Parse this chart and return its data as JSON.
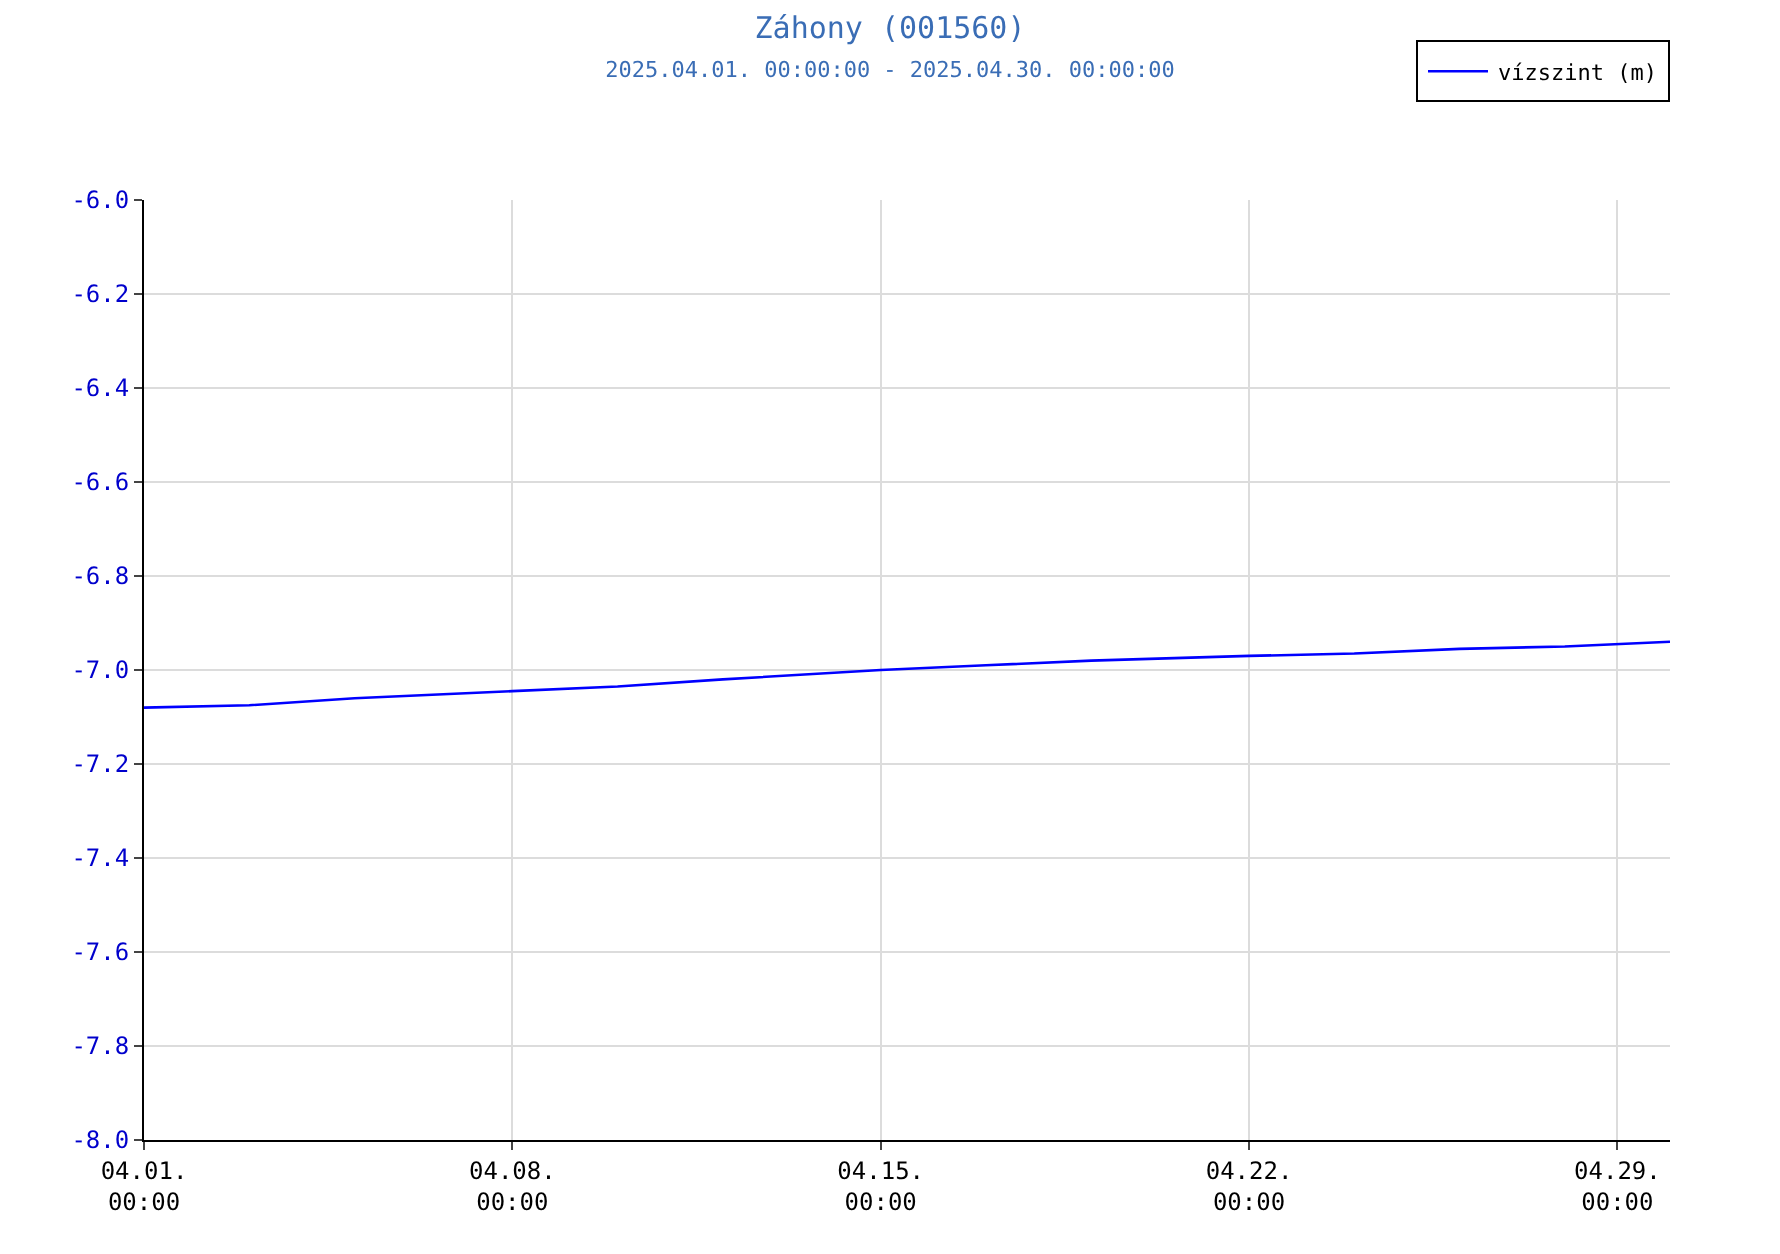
{
  "chart_data": {
    "type": "line",
    "title": "Záhony (001560)",
    "subtitle": "2025.04.01. 00:00:00 - 2025.04.30. 00:00:00",
    "series": [
      {
        "name": "vízszint (m)",
        "color": "#0000ff",
        "x": [
          "2025-04-01",
          "2025-04-03",
          "2025-04-05",
          "2025-04-08",
          "2025-04-10",
          "2025-04-12",
          "2025-04-15",
          "2025-04-17",
          "2025-04-19",
          "2025-04-22",
          "2025-04-24",
          "2025-04-26",
          "2025-04-28",
          "2025-04-30"
        ],
        "values": [
          -7.08,
          -7.075,
          -7.06,
          -7.045,
          -7.035,
          -7.02,
          -7.0,
          -6.99,
          -6.98,
          -6.97,
          -6.965,
          -6.955,
          -6.95,
          -6.94
        ]
      }
    ],
    "xlim": [
      "2025-04-01",
      "2025-04-30"
    ],
    "xticks": [
      {
        "value": "2025-04-01",
        "label": "04.01.\n00:00"
      },
      {
        "value": "2025-04-08",
        "label": "04.08.\n00:00"
      },
      {
        "value": "2025-04-15",
        "label": "04.15.\n00:00"
      },
      {
        "value": "2025-04-22",
        "label": "04.22.\n00:00"
      },
      {
        "value": "2025-04-29",
        "label": "04.29.\n00:00"
      }
    ],
    "ylim": [
      -8.0,
      -6.0
    ],
    "yticks": [
      {
        "value": -8.0,
        "label": "-8.0"
      },
      {
        "value": -7.8,
        "label": "-7.8"
      },
      {
        "value": -7.6,
        "label": "-7.6"
      },
      {
        "value": -7.4,
        "label": "-7.4"
      },
      {
        "value": -7.2,
        "label": "-7.2"
      },
      {
        "value": -7.0,
        "label": "-7.0"
      },
      {
        "value": -6.8,
        "label": "-6.8"
      },
      {
        "value": -6.6,
        "label": "-6.6"
      },
      {
        "value": -6.4,
        "label": "-6.4"
      },
      {
        "value": -6.2,
        "label": "-6.2"
      },
      {
        "value": -6.0,
        "label": "-6.0"
      }
    ],
    "grid": true,
    "legend": "top right",
    "marker": "none",
    "line_style": "solid"
  }
}
